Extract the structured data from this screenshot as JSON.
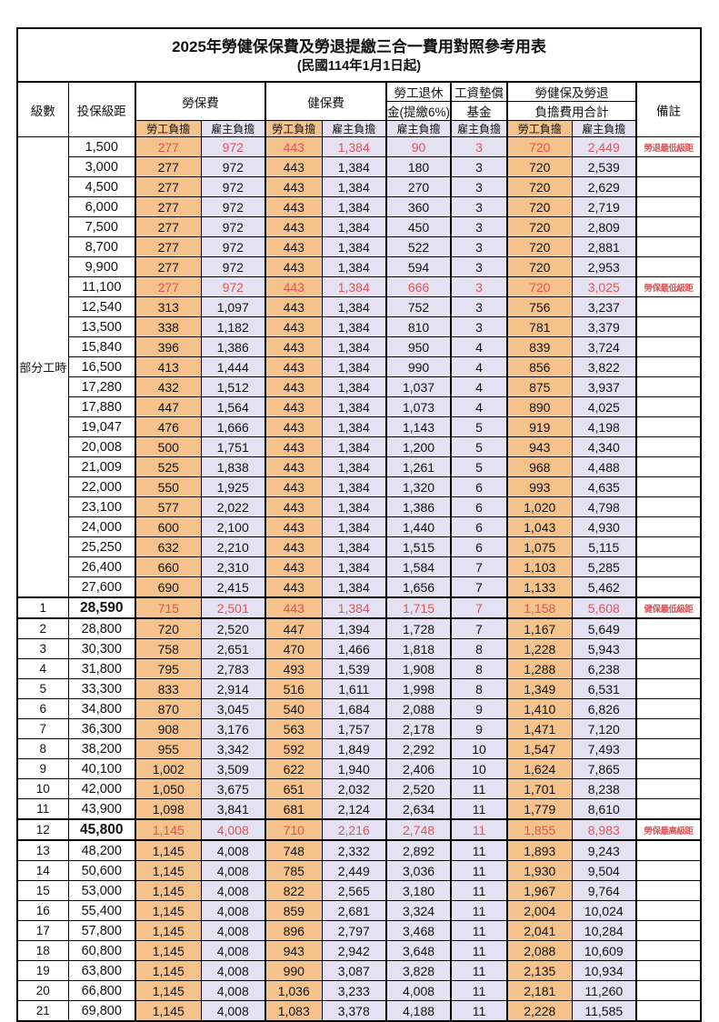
{
  "title": "2025年勞健保保費及勞退提繳三合一費用對照參考用表",
  "subtitle": "(民國114年1月1日起)",
  "header": {
    "level": "級數",
    "salary": "投保級距",
    "labor_fee": "勞保費",
    "health_fee": "健保費",
    "pension_line1": "勞工退休",
    "pension_line2": "金(提繳6%)",
    "wage_fund_line1": "工資墊償",
    "wage_fund_line2": "基金",
    "total_line1": "勞健保及勞退",
    "total_line2": "負擔費用合計",
    "note": "備註",
    "employee": "勞工負擔",
    "employer": "雇主負擔"
  },
  "part_time_label": "部分工時",
  "part_time_rowspan": 23,
  "colors": {
    "employee_bg": "#F6C28B",
    "employer_bg": "#E4E1F2",
    "highlight_red": "#E05555"
  },
  "rows": [
    {
      "lv": null,
      "sal": "1,500",
      "lbe": "277",
      "lbr": "972",
      "hbe": "443",
      "hbr": "1,384",
      "pen": "90",
      "wf": "3",
      "te": "720",
      "ter": "2,449",
      "note": "勞退最低級距",
      "hl": true,
      "bold": false,
      "thick": false
    },
    {
      "lv": null,
      "sal": "3,000",
      "lbe": "277",
      "lbr": "972",
      "hbe": "443",
      "hbr": "1,384",
      "pen": "180",
      "wf": "3",
      "te": "720",
      "ter": "2,539",
      "note": "",
      "hl": false,
      "bold": false,
      "thick": false
    },
    {
      "lv": null,
      "sal": "4,500",
      "lbe": "277",
      "lbr": "972",
      "hbe": "443",
      "hbr": "1,384",
      "pen": "270",
      "wf": "3",
      "te": "720",
      "ter": "2,629",
      "note": "",
      "hl": false,
      "bold": false,
      "thick": false
    },
    {
      "lv": null,
      "sal": "6,000",
      "lbe": "277",
      "lbr": "972",
      "hbe": "443",
      "hbr": "1,384",
      "pen": "360",
      "wf": "3",
      "te": "720",
      "ter": "2,719",
      "note": "",
      "hl": false,
      "bold": false,
      "thick": false
    },
    {
      "lv": null,
      "sal": "7,500",
      "lbe": "277",
      "lbr": "972",
      "hbe": "443",
      "hbr": "1,384",
      "pen": "450",
      "wf": "3",
      "te": "720",
      "ter": "2,809",
      "note": "",
      "hl": false,
      "bold": false,
      "thick": false
    },
    {
      "lv": null,
      "sal": "8,700",
      "lbe": "277",
      "lbr": "972",
      "hbe": "443",
      "hbr": "1,384",
      "pen": "522",
      "wf": "3",
      "te": "720",
      "ter": "2,881",
      "note": "",
      "hl": false,
      "bold": false,
      "thick": false
    },
    {
      "lv": null,
      "sal": "9,900",
      "lbe": "277",
      "lbr": "972",
      "hbe": "443",
      "hbr": "1,384",
      "pen": "594",
      "wf": "3",
      "te": "720",
      "ter": "2,953",
      "note": "",
      "hl": false,
      "bold": false,
      "thick": false
    },
    {
      "lv": null,
      "sal": "11,100",
      "lbe": "277",
      "lbr": "972",
      "hbe": "443",
      "hbr": "1,384",
      "pen": "666",
      "wf": "3",
      "te": "720",
      "ter": "3,025",
      "note": "勞保最低級距",
      "hl": true,
      "bold": false,
      "thick": false
    },
    {
      "lv": null,
      "sal": "12,540",
      "lbe": "313",
      "lbr": "1,097",
      "hbe": "443",
      "hbr": "1,384",
      "pen": "752",
      "wf": "3",
      "te": "756",
      "ter": "3,237",
      "note": "",
      "hl": false,
      "bold": false,
      "thick": false
    },
    {
      "lv": null,
      "sal": "13,500",
      "lbe": "338",
      "lbr": "1,182",
      "hbe": "443",
      "hbr": "1,384",
      "pen": "810",
      "wf": "3",
      "te": "781",
      "ter": "3,379",
      "note": "",
      "hl": false,
      "bold": false,
      "thick": false
    },
    {
      "lv": null,
      "sal": "15,840",
      "lbe": "396",
      "lbr": "1,386",
      "hbe": "443",
      "hbr": "1,384",
      "pen": "950",
      "wf": "4",
      "te": "839",
      "ter": "3,724",
      "note": "",
      "hl": false,
      "bold": false,
      "thick": false
    },
    {
      "lv": null,
      "sal": "16,500",
      "lbe": "413",
      "lbr": "1,444",
      "hbe": "443",
      "hbr": "1,384",
      "pen": "990",
      "wf": "4",
      "te": "856",
      "ter": "3,822",
      "note": "",
      "hl": false,
      "bold": false,
      "thick": false
    },
    {
      "lv": null,
      "sal": "17,280",
      "lbe": "432",
      "lbr": "1,512",
      "hbe": "443",
      "hbr": "1,384",
      "pen": "1,037",
      "wf": "4",
      "te": "875",
      "ter": "3,937",
      "note": "",
      "hl": false,
      "bold": false,
      "thick": false
    },
    {
      "lv": null,
      "sal": "17,880",
      "lbe": "447",
      "lbr": "1,564",
      "hbe": "443",
      "hbr": "1,384",
      "pen": "1,073",
      "wf": "4",
      "te": "890",
      "ter": "4,025",
      "note": "",
      "hl": false,
      "bold": false,
      "thick": false
    },
    {
      "lv": null,
      "sal": "19,047",
      "lbe": "476",
      "lbr": "1,666",
      "hbe": "443",
      "hbr": "1,384",
      "pen": "1,143",
      "wf": "5",
      "te": "919",
      "ter": "4,198",
      "note": "",
      "hl": false,
      "bold": false,
      "thick": false
    },
    {
      "lv": null,
      "sal": "20,008",
      "lbe": "500",
      "lbr": "1,751",
      "hbe": "443",
      "hbr": "1,384",
      "pen": "1,200",
      "wf": "5",
      "te": "943",
      "ter": "4,340",
      "note": "",
      "hl": false,
      "bold": false,
      "thick": false
    },
    {
      "lv": null,
      "sal": "21,009",
      "lbe": "525",
      "lbr": "1,838",
      "hbe": "443",
      "hbr": "1,384",
      "pen": "1,261",
      "wf": "5",
      "te": "968",
      "ter": "4,488",
      "note": "",
      "hl": false,
      "bold": false,
      "thick": false
    },
    {
      "lv": null,
      "sal": "22,000",
      "lbe": "550",
      "lbr": "1,925",
      "hbe": "443",
      "hbr": "1,384",
      "pen": "1,320",
      "wf": "6",
      "te": "993",
      "ter": "4,635",
      "note": "",
      "hl": false,
      "bold": false,
      "thick": false
    },
    {
      "lv": null,
      "sal": "23,100",
      "lbe": "577",
      "lbr": "2,022",
      "hbe": "443",
      "hbr": "1,384",
      "pen": "1,386",
      "wf": "6",
      "te": "1,020",
      "ter": "4,798",
      "note": "",
      "hl": false,
      "bold": false,
      "thick": false
    },
    {
      "lv": null,
      "sal": "24,000",
      "lbe": "600",
      "lbr": "2,100",
      "hbe": "443",
      "hbr": "1,384",
      "pen": "1,440",
      "wf": "6",
      "te": "1,043",
      "ter": "4,930",
      "note": "",
      "hl": false,
      "bold": false,
      "thick": false
    },
    {
      "lv": null,
      "sal": "25,250",
      "lbe": "632",
      "lbr": "2,210",
      "hbe": "443",
      "hbr": "1,384",
      "pen": "1,515",
      "wf": "6",
      "te": "1,075",
      "ter": "5,115",
      "note": "",
      "hl": false,
      "bold": false,
      "thick": false
    },
    {
      "lv": null,
      "sal": "26,400",
      "lbe": "660",
      "lbr": "2,310",
      "hbe": "443",
      "hbr": "1,384",
      "pen": "1,584",
      "wf": "7",
      "te": "1,103",
      "ter": "5,285",
      "note": "",
      "hl": false,
      "bold": false,
      "thick": false
    },
    {
      "lv": null,
      "sal": "27,600",
      "lbe": "690",
      "lbr": "2,415",
      "hbe": "443",
      "hbr": "1,384",
      "pen": "1,656",
      "wf": "7",
      "te": "1,133",
      "ter": "5,462",
      "note": "",
      "hl": false,
      "bold": false,
      "thick": false
    },
    {
      "lv": "1",
      "sal": "28,590",
      "lbe": "715",
      "lbr": "2,501",
      "hbe": "443",
      "hbr": "1,384",
      "pen": "1,715",
      "wf": "7",
      "te": "1,158",
      "ter": "5,608",
      "note": "健保最低級距",
      "hl": true,
      "bold": true,
      "thick": true
    },
    {
      "lv": "2",
      "sal": "28,800",
      "lbe": "720",
      "lbr": "2,520",
      "hbe": "447",
      "hbr": "1,394",
      "pen": "1,728",
      "wf": "7",
      "te": "1,167",
      "ter": "5,649",
      "note": "",
      "hl": false,
      "bold": false,
      "thick": true
    },
    {
      "lv": "3",
      "sal": "30,300",
      "lbe": "758",
      "lbr": "2,651",
      "hbe": "470",
      "hbr": "1,466",
      "pen": "1,818",
      "wf": "8",
      "te": "1,228",
      "ter": "5,943",
      "note": "",
      "hl": false,
      "bold": false,
      "thick": false
    },
    {
      "lv": "4",
      "sal": "31,800",
      "lbe": "795",
      "lbr": "2,783",
      "hbe": "493",
      "hbr": "1,539",
      "pen": "1,908",
      "wf": "8",
      "te": "1,288",
      "ter": "6,238",
      "note": "",
      "hl": false,
      "bold": false,
      "thick": false
    },
    {
      "lv": "5",
      "sal": "33,300",
      "lbe": "833",
      "lbr": "2,914",
      "hbe": "516",
      "hbr": "1,611",
      "pen": "1,998",
      "wf": "8",
      "te": "1,349",
      "ter": "6,531",
      "note": "",
      "hl": false,
      "bold": false,
      "thick": false
    },
    {
      "lv": "6",
      "sal": "34,800",
      "lbe": "870",
      "lbr": "3,045",
      "hbe": "540",
      "hbr": "1,684",
      "pen": "2,088",
      "wf": "9",
      "te": "1,410",
      "ter": "6,826",
      "note": "",
      "hl": false,
      "bold": false,
      "thick": false
    },
    {
      "lv": "7",
      "sal": "36,300",
      "lbe": "908",
      "lbr": "3,176",
      "hbe": "563",
      "hbr": "1,757",
      "pen": "2,178",
      "wf": "9",
      "te": "1,471",
      "ter": "7,120",
      "note": "",
      "hl": false,
      "bold": false,
      "thick": false
    },
    {
      "lv": "8",
      "sal": "38,200",
      "lbe": "955",
      "lbr": "3,342",
      "hbe": "592",
      "hbr": "1,849",
      "pen": "2,292",
      "wf": "10",
      "te": "1,547",
      "ter": "7,493",
      "note": "",
      "hl": false,
      "bold": false,
      "thick": false
    },
    {
      "lv": "9",
      "sal": "40,100",
      "lbe": "1,002",
      "lbr": "3,509",
      "hbe": "622",
      "hbr": "1,940",
      "pen": "2,406",
      "wf": "10",
      "te": "1,624",
      "ter": "7,865",
      "note": "",
      "hl": false,
      "bold": false,
      "thick": false
    },
    {
      "lv": "10",
      "sal": "42,000",
      "lbe": "1,050",
      "lbr": "3,675",
      "hbe": "651",
      "hbr": "2,032",
      "pen": "2,520",
      "wf": "11",
      "te": "1,701",
      "ter": "8,238",
      "note": "",
      "hl": false,
      "bold": false,
      "thick": false
    },
    {
      "lv": "11",
      "sal": "43,900",
      "lbe": "1,098",
      "lbr": "3,841",
      "hbe": "681",
      "hbr": "2,124",
      "pen": "2,634",
      "wf": "11",
      "te": "1,779",
      "ter": "8,610",
      "note": "",
      "hl": false,
      "bold": false,
      "thick": false
    },
    {
      "lv": "12",
      "sal": "45,800",
      "lbe": "1,145",
      "lbr": "4,008",
      "hbe": "710",
      "hbr": "2,216",
      "pen": "2,748",
      "wf": "11",
      "te": "1,855",
      "ter": "8,983",
      "note": "勞保最高級距",
      "hl": true,
      "bold": true,
      "thick": true
    },
    {
      "lv": "13",
      "sal": "48,200",
      "lbe": "1,145",
      "lbr": "4,008",
      "hbe": "748",
      "hbr": "2,332",
      "pen": "2,892",
      "wf": "11",
      "te": "1,893",
      "ter": "9,243",
      "note": "",
      "hl": false,
      "bold": false,
      "thick": true
    },
    {
      "lv": "14",
      "sal": "50,600",
      "lbe": "1,145",
      "lbr": "4,008",
      "hbe": "785",
      "hbr": "2,449",
      "pen": "3,036",
      "wf": "11",
      "te": "1,930",
      "ter": "9,504",
      "note": "",
      "hl": false,
      "bold": false,
      "thick": false
    },
    {
      "lv": "15",
      "sal": "53,000",
      "lbe": "1,145",
      "lbr": "4,008",
      "hbe": "822",
      "hbr": "2,565",
      "pen": "3,180",
      "wf": "11",
      "te": "1,967",
      "ter": "9,764",
      "note": "",
      "hl": false,
      "bold": false,
      "thick": false
    },
    {
      "lv": "16",
      "sal": "55,400",
      "lbe": "1,145",
      "lbr": "4,008",
      "hbe": "859",
      "hbr": "2,681",
      "pen": "3,324",
      "wf": "11",
      "te": "2,004",
      "ter": "10,024",
      "note": "",
      "hl": false,
      "bold": false,
      "thick": false
    },
    {
      "lv": "17",
      "sal": "57,800",
      "lbe": "1,145",
      "lbr": "4,008",
      "hbe": "896",
      "hbr": "2,797",
      "pen": "3,468",
      "wf": "11",
      "te": "2,041",
      "ter": "10,284",
      "note": "",
      "hl": false,
      "bold": false,
      "thick": false
    },
    {
      "lv": "18",
      "sal": "60,800",
      "lbe": "1,145",
      "lbr": "4,008",
      "hbe": "943",
      "hbr": "2,942",
      "pen": "3,648",
      "wf": "11",
      "te": "2,088",
      "ter": "10,609",
      "note": "",
      "hl": false,
      "bold": false,
      "thick": false
    },
    {
      "lv": "19",
      "sal": "63,800",
      "lbe": "1,145",
      "lbr": "4,008",
      "hbe": "990",
      "hbr": "3,087",
      "pen": "3,828",
      "wf": "11",
      "te": "2,135",
      "ter": "10,934",
      "note": "",
      "hl": false,
      "bold": false,
      "thick": false
    },
    {
      "lv": "20",
      "sal": "66,800",
      "lbe": "1,145",
      "lbr": "4,008",
      "hbe": "1,036",
      "hbr": "3,233",
      "pen": "4,008",
      "wf": "11",
      "te": "2,181",
      "ter": "11,260",
      "note": "",
      "hl": false,
      "bold": false,
      "thick": false
    },
    {
      "lv": "21",
      "sal": "69,800",
      "lbe": "1,145",
      "lbr": "4,008",
      "hbe": "1,083",
      "hbr": "3,378",
      "pen": "4,188",
      "wf": "11",
      "te": "2,228",
      "ter": "11,585",
      "note": "",
      "hl": false,
      "bold": false,
      "thick": false
    }
  ]
}
